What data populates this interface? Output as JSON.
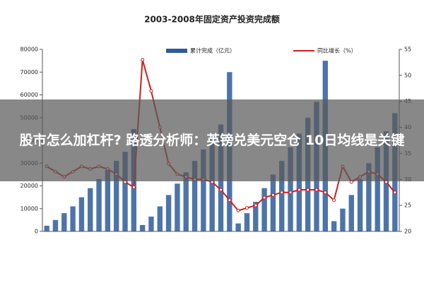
{
  "banner": {
    "text": "股市怎么加杠杆? 路透分析师：英镑兑美元空仓 10日均线是关键"
  },
  "chart_data": {
    "type": "bar-line",
    "title": "2003-2008年固定资产投资完成额",
    "categories": [
      null,
      null,
      null,
      null,
      null,
      null,
      null,
      null,
      null,
      null,
      null,
      null,
      null,
      null,
      null,
      null,
      null,
      null,
      null,
      null,
      null,
      null,
      null,
      null,
      null,
      null,
      null,
      null,
      null,
      null,
      null,
      null,
      null,
      null,
      null,
      null,
      null,
      null,
      null,
      null,
      null
    ],
    "series": [
      {
        "name": "累计完成（亿元）",
        "color": "#2e5c9a",
        "values": [
          2500,
          5000,
          8000,
          11000,
          15000,
          19000,
          23000,
          27000,
          31000,
          35000,
          45000,
          2800,
          6500,
          11000,
          16000,
          21000,
          26000,
          31000,
          36000,
          41000,
          47000,
          70000,
          3500,
          8000,
          13000,
          19000,
          25000,
          31000,
          37000,
          43000,
          50000,
          57000,
          75000,
          4500,
          10000,
          16000,
          23000,
          30000,
          37000,
          44000,
          52000
        ]
      },
      {
        "name": "同比增长（%）",
        "color": "#cc1f1f",
        "axis": "y2",
        "values": [
          32.5,
          31.5,
          30.5,
          31.5,
          32.5,
          32,
          32.5,
          32,
          31,
          29.5,
          28.5,
          53,
          47,
          40,
          33,
          31,
          30.5,
          30,
          30,
          29.5,
          28,
          26,
          24,
          24.5,
          25,
          26.5,
          27,
          27.5,
          27.5,
          28,
          28,
          28,
          27.5,
          26,
          32.5,
          29.5,
          30.5,
          31.5,
          31,
          29.5,
          27.5
        ]
      }
    ],
    "ylim": [
      0,
      80000
    ],
    "yticks": [
      0,
      10000,
      20000,
      30000,
      40000,
      50000,
      60000,
      70000,
      80000
    ],
    "y2lim": [
      20,
      55
    ],
    "y2ticks": [
      20,
      25,
      30,
      35,
      40,
      45,
      50,
      55
    ]
  }
}
